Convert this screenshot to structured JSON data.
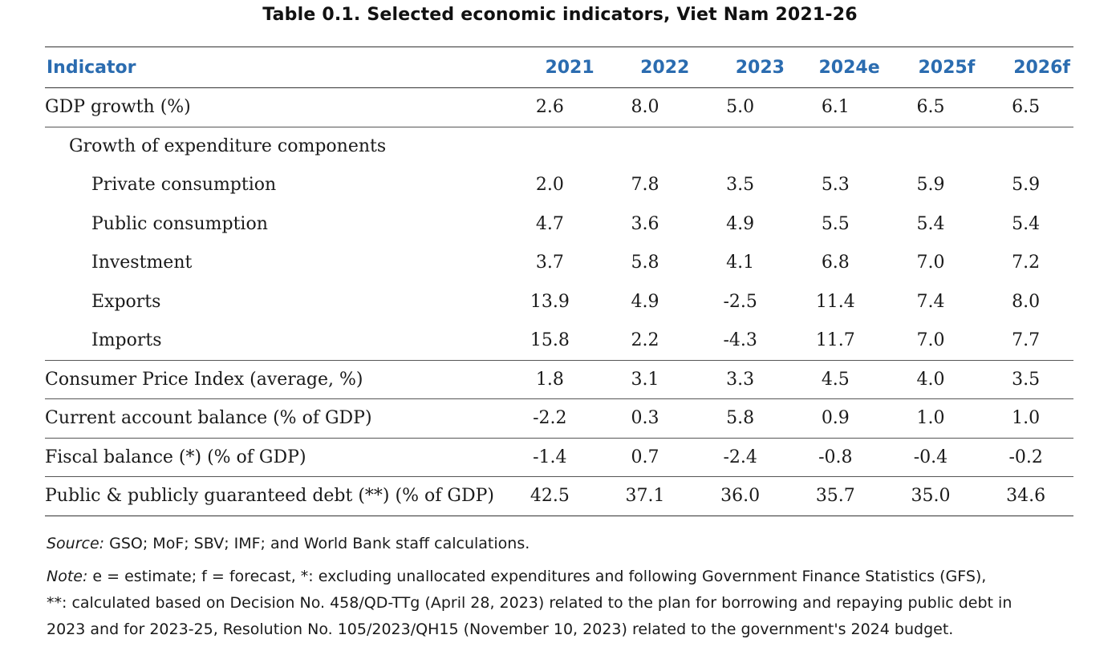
{
  "title": "Table 0.1. Selected economic indicators, Viet Nam 2021-26",
  "table": {
    "header": {
      "indicator": "Indicator",
      "years": [
        "2021",
        "2022",
        "2023",
        "2024e",
        "2025f",
        "2026f"
      ]
    },
    "rows": [
      {
        "label": "GDP growth (%)",
        "indent": 0,
        "values": [
          "2.6",
          "8.0",
          "5.0",
          "6.1",
          "6.5",
          "6.5"
        ],
        "ruled": true
      },
      {
        "label": "Growth of expenditure components",
        "indent": 1,
        "values": [
          "",
          "",
          "",
          "",
          "",
          ""
        ],
        "ruled": false
      },
      {
        "label": "Private consumption",
        "indent": 2,
        "values": [
          "2.0",
          "7.8",
          "3.5",
          "5.3",
          "5.9",
          "5.9"
        ],
        "ruled": false
      },
      {
        "label": "Public consumption",
        "indent": 2,
        "values": [
          "4.7",
          "3.6",
          "4.9",
          "5.5",
          "5.4",
          "5.4"
        ],
        "ruled": false
      },
      {
        "label": "Investment",
        "indent": 2,
        "values": [
          "3.7",
          "5.8",
          "4.1",
          "6.8",
          "7.0",
          "7.2"
        ],
        "ruled": false
      },
      {
        "label": "Exports",
        "indent": 2,
        "values": [
          "13.9",
          "4.9",
          "-2.5",
          "11.4",
          "7.4",
          "8.0"
        ],
        "ruled": false
      },
      {
        "label": "Imports",
        "indent": 2,
        "values": [
          "15.8",
          "2.2",
          "-4.3",
          "11.7",
          "7.0",
          "7.7"
        ],
        "ruled": true
      },
      {
        "label": "Consumer Price Index (average, %)",
        "indent": 0,
        "values": [
          "1.8",
          "3.1",
          "3.3",
          "4.5",
          "4.0",
          "3.5"
        ],
        "ruled": true
      },
      {
        "label": "Current account balance (% of GDP)",
        "indent": 0,
        "values": [
          "-2.2",
          "0.3",
          "5.8",
          "0.9",
          "1.0",
          "1.0"
        ],
        "ruled": true
      },
      {
        "label": "Fiscal balance (*) (% of GDP)",
        "indent": 0,
        "values": [
          "-1.4",
          "0.7",
          "-2.4",
          "-0.8",
          "-0.4",
          "-0.2"
        ],
        "ruled": true
      },
      {
        "label": "Public & publicly guaranteed debt (**) (% of GDP)",
        "indent": 0,
        "values": [
          "42.5",
          "37.1",
          "36.0",
          "35.7",
          "35.0",
          "34.6"
        ],
        "ruled": true
      }
    ]
  },
  "notes": {
    "source_label": "Source:",
    "source_text": " GSO; MoF; SBV; IMF; and World Bank staff calculations.",
    "note_label": "Note:",
    "note_line1": " e = estimate; f = forecast, *: excluding unallocated expenditures and following Government Finance Statistics (GFS),",
    "note_line2": "**: calculated based on Decision No. 458/QD-TTg (April 28, 2023) related to the plan for borrowing and repaying public debt in",
    "note_line3": "2023 and for 2023-25, Resolution No. 105/2023/QH15 (November 10, 2023) related to the government's 2024 budget."
  },
  "colors": {
    "header_text": "#2b6cb0",
    "body_text": "#1a1a1a"
  }
}
